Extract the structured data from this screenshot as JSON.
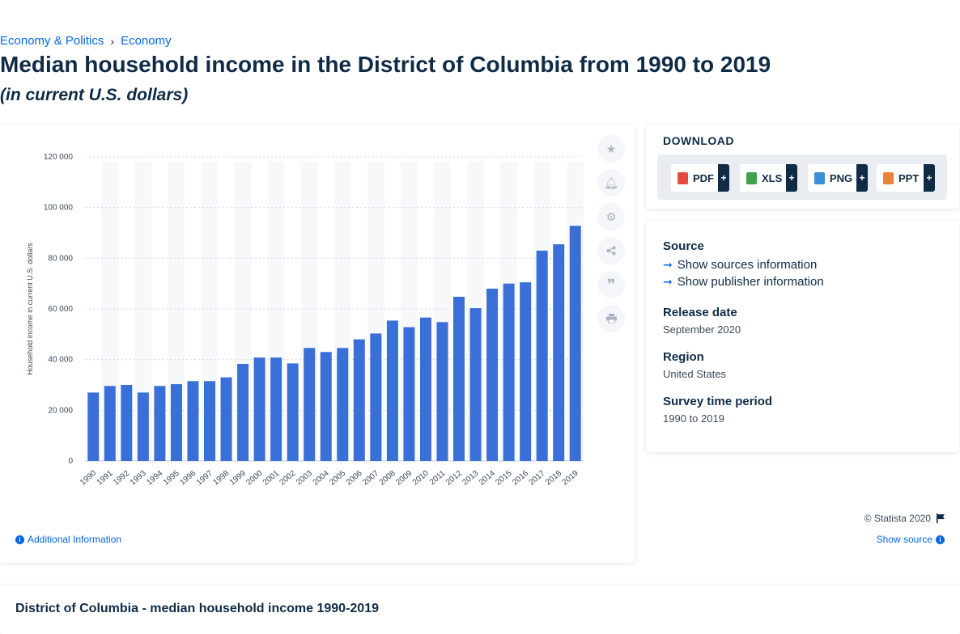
{
  "breadcrumb": {
    "items": [
      "Economy & Politics",
      "Economy"
    ],
    "separator": "›"
  },
  "title": "Median household income in the District of Columbia from 1990 to 2019",
  "subtitle": "(in current U.S. dollars)",
  "chart_data": {
    "type": "bar",
    "ylabel": "Household income in current U.S. dollars",
    "xlabel": "",
    "ylim": [
      0,
      120000
    ],
    "yticks": [
      0,
      20000,
      40000,
      60000,
      80000,
      100000,
      120000
    ],
    "ytick_labels": [
      "0",
      "20 000",
      "40 000",
      "60 000",
      "80 000",
      "100 000",
      "120 000"
    ],
    "categories": [
      "1990",
      "1991",
      "1992",
      "1993",
      "1994",
      "1995",
      "1996",
      "1997",
      "1998",
      "1999",
      "2000",
      "2001",
      "2002",
      "2003",
      "2004",
      "2005",
      "2006",
      "2007",
      "2008",
      "2009",
      "2010",
      "2011",
      "2012",
      "2013",
      "2014",
      "2015",
      "2016",
      "2017",
      "2018",
      "2019"
    ],
    "values": [
      27000,
      29600,
      30000,
      27000,
      29600,
      30300,
      31500,
      31500,
      33000,
      38300,
      40800,
      40800,
      38500,
      44600,
      43000,
      44600,
      48000,
      50300,
      55400,
      52800,
      56600,
      54800,
      64800,
      60300,
      68000,
      70000,
      70500,
      83000,
      85500,
      92800
    ],
    "bar_color": "#3b6fd8",
    "grid": true
  },
  "tools": {
    "icons": [
      "star-icon",
      "bell-icon",
      "gear-icon",
      "share-icon",
      "quote-icon",
      "print-icon"
    ]
  },
  "credit": {
    "text": "© Statista 2020"
  },
  "links": {
    "additional_info": "Additional Information",
    "show_source": "Show source"
  },
  "download": {
    "title": "DOWNLOAD",
    "buttons": [
      {
        "label": "PDF",
        "color": "#e44b3c"
      },
      {
        "label": "XLS",
        "color": "#3fa34d"
      },
      {
        "label": "PNG",
        "color": "#3b8fd8"
      },
      {
        "label": "PPT",
        "color": "#e8843a"
      }
    ],
    "plus": "+"
  },
  "meta": {
    "source_label": "Source",
    "show_sources": "Show sources information",
    "show_publisher": "Show publisher information",
    "release_label": "Release date",
    "release_value": "September 2020",
    "region_label": "Region",
    "region_value": "United States",
    "survey_label": "Survey time period",
    "survey_value": "1990 to 2019"
  },
  "related": {
    "title": "District of Columbia - median household income 1990-2019"
  }
}
